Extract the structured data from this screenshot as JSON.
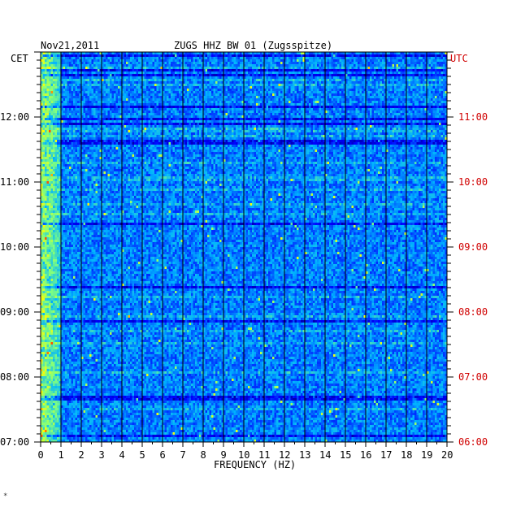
{
  "header": {
    "date": "Nov21,2011",
    "station": "ZUGS HHZ BW 01 (Zugsspitze)"
  },
  "axes": {
    "left_tz": "CET",
    "right_tz": "UTC",
    "left_color": "#000000",
    "right_color": "#d00000"
  },
  "chart_data": {
    "type": "heatmap",
    "title": "ZUGS HHZ BW 01 (Zugsspitze)",
    "date": "Nov21,2011",
    "xlabel": "FREQUENCY (HZ)",
    "x_range": [
      0,
      20
    ],
    "x_ticks": [
      "0",
      "1",
      "2",
      "3",
      "4",
      "5",
      "6",
      "7",
      "8",
      "9",
      "10",
      "11",
      "12",
      "13",
      "14",
      "15",
      "16",
      "17",
      "18",
      "19",
      "20"
    ],
    "y_left_label": "CET",
    "y_left_ticks": [
      "07:00",
      "08:00",
      "09:00",
      "10:00",
      "11:00",
      "12:00"
    ],
    "y_right_label": "UTC",
    "y_right_ticks": [
      "06:00",
      "07:00",
      "08:00",
      "09:00",
      "10:00",
      "11:00"
    ],
    "colormap": [
      "#00007f",
      "#0000ff",
      "#00b4ff",
      "#7fff7f",
      "#ffff00",
      "#ff5000"
    ],
    "grid": true
  }
}
